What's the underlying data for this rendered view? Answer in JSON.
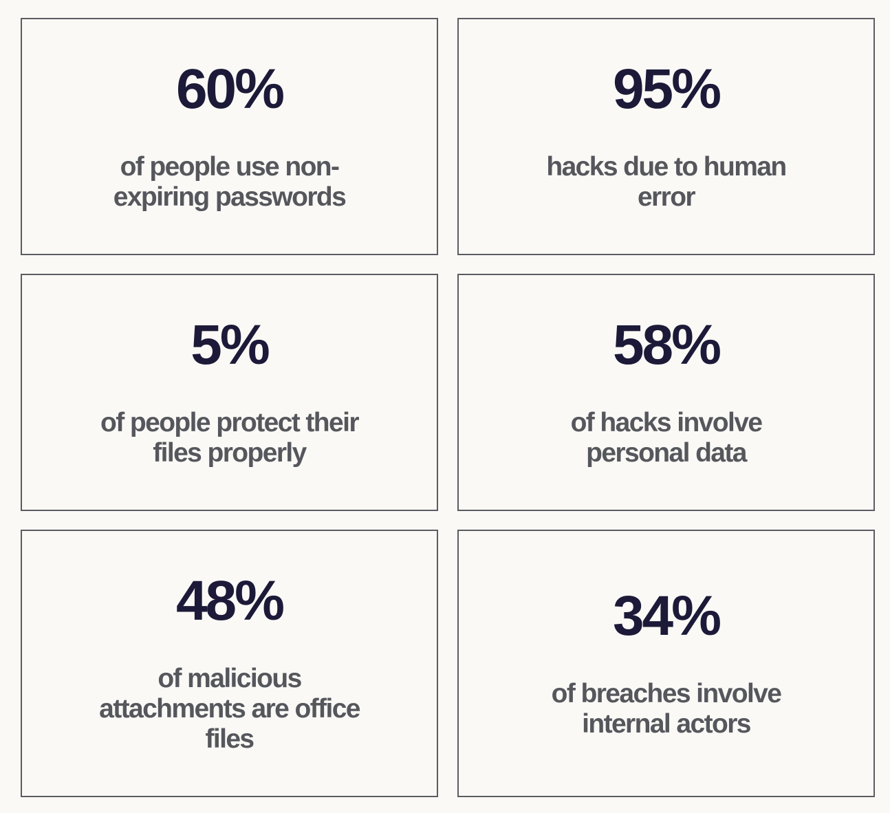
{
  "colors": {
    "background": "#faf9f6",
    "number": "#1c1a38",
    "text": "#55575c",
    "border": "#5b5c61"
  },
  "stats": [
    {
      "value": "60%",
      "lines": [
        "of people use non-",
        "expiring passwords"
      ]
    },
    {
      "value": "95%",
      "lines": [
        "hacks due to human",
        "error"
      ]
    },
    {
      "value": "5%",
      "lines": [
        "of people protect their",
        "files properly"
      ]
    },
    {
      "value": "58%",
      "lines": [
        "of hacks involve",
        "personal data"
      ]
    },
    {
      "value": "48%",
      "lines": [
        "of malicious",
        "attachments are office",
        "files"
      ]
    },
    {
      "value": "34%",
      "lines": [
        "of breaches involve",
        "internal actors"
      ]
    }
  ]
}
